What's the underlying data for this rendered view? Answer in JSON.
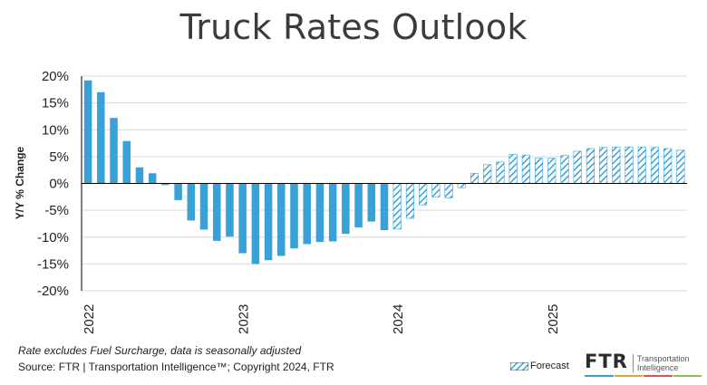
{
  "title": "Truck Rates Outlook",
  "footnote": "Rate excludes Fuel Surcharge, data is seasonally adjusted",
  "source": "Source: FTR | Transportation Intelligence™; Copyright 2024, FTR",
  "legend": {
    "forecast_label": "Forecast"
  },
  "logo": {
    "main": "FTR",
    "sub_line1": "Transportation",
    "sub_line2": "Intelligence",
    "stripe_colors": [
      "#3aa0d8",
      "#e6a33a",
      "#d9534f",
      "#8cc152"
    ]
  },
  "colors": {
    "actual": "#3aa0d8",
    "forecast": "#3aa0d8",
    "grid": "#d9d9d9",
    "axis": "#000000"
  },
  "chart_data": {
    "type": "bar",
    "xlabel": "",
    "ylabel": "Y/Y % Change",
    "ylim": [
      -20,
      20
    ],
    "yticks": [
      20,
      15,
      10,
      5,
      0,
      -5,
      -10,
      -15,
      -20
    ],
    "ytick_labels": [
      "20%",
      "15%",
      "10%",
      "5%",
      "0%",
      "-5%",
      "-10%",
      "-15%",
      "-20%"
    ],
    "grid": true,
    "x_year_labels": [
      {
        "label": "2022",
        "index": 0
      },
      {
        "label": "2023",
        "index": 12
      },
      {
        "label": "2024",
        "index": 24
      },
      {
        "label": "2025",
        "index": 36
      }
    ],
    "series": [
      {
        "name": "Actual",
        "values": [
          19.2,
          17.0,
          12.2,
          7.9,
          3.0,
          1.9,
          -0.3,
          -3.1,
          -6.9,
          -8.6,
          -10.7,
          -9.9,
          -13.0,
          -15.0,
          -14.3,
          -13.5,
          -12.1,
          -11.3,
          -10.9,
          -10.8,
          -9.4,
          -8.2,
          -7.1,
          -8.7
        ]
      },
      {
        "name": "Forecast",
        "values": [
          -8.5,
          -6.5,
          -4.0,
          -2.5,
          -2.7,
          -0.8,
          1.9,
          3.5,
          4.0,
          5.4,
          5.3,
          4.7,
          4.7,
          5.2,
          6.0,
          6.5,
          6.7,
          6.8,
          6.8,
          6.8,
          6.7,
          6.5,
          6.2
        ]
      }
    ]
  }
}
